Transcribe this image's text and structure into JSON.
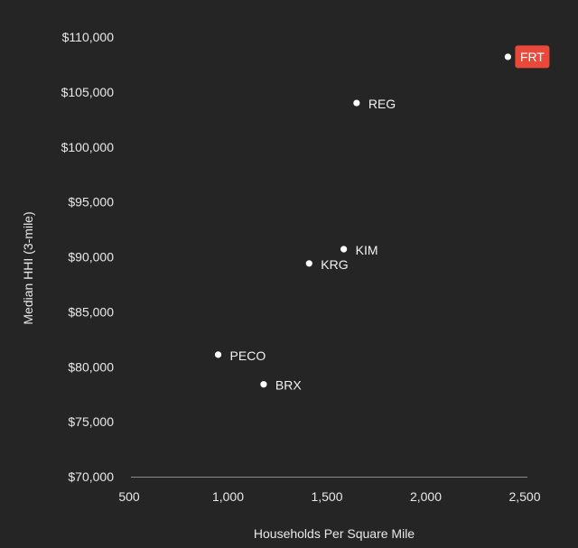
{
  "chart_data": {
    "type": "scatter",
    "title": "",
    "xlabel": "Households Per Square Mile",
    "ylabel": "Median HHI (3-mile)",
    "xlim": [
      500,
      2500
    ],
    "ylim": [
      70000,
      110000
    ],
    "x_ticks": [
      500,
      1000,
      1500,
      2000,
      2500
    ],
    "x_tick_labels": [
      "500",
      "1,000",
      "1,500",
      "2,000",
      "2,500"
    ],
    "y_ticks": [
      70000,
      75000,
      80000,
      85000,
      90000,
      95000,
      100000,
      105000,
      110000
    ],
    "y_tick_labels": [
      "$70,000",
      "$75,000",
      "$80,000",
      "$85,000",
      "$90,000",
      "$95,000",
      "$100,000",
      "$105,000",
      "$110,000"
    ],
    "grid": false,
    "points": [
      {
        "label": "FRT",
        "x": 2415,
        "y": 108200,
        "highlight": true
      },
      {
        "label": "REG",
        "x": 1650,
        "y": 104000,
        "highlight": false
      },
      {
        "label": "KIM",
        "x": 1585,
        "y": 90700,
        "highlight": false
      },
      {
        "label": "KRG",
        "x": 1410,
        "y": 89400,
        "highlight": false
      },
      {
        "label": "PECO",
        "x": 950,
        "y": 81100,
        "highlight": false
      },
      {
        "label": "BRX",
        "x": 1180,
        "y": 78400,
        "highlight": false
      }
    ],
    "colors": {
      "background": "#252525",
      "point": "#ffffff",
      "highlight": "#e8493a",
      "text": "#e9e9e9",
      "axis_line": "#8a8a8a"
    }
  }
}
